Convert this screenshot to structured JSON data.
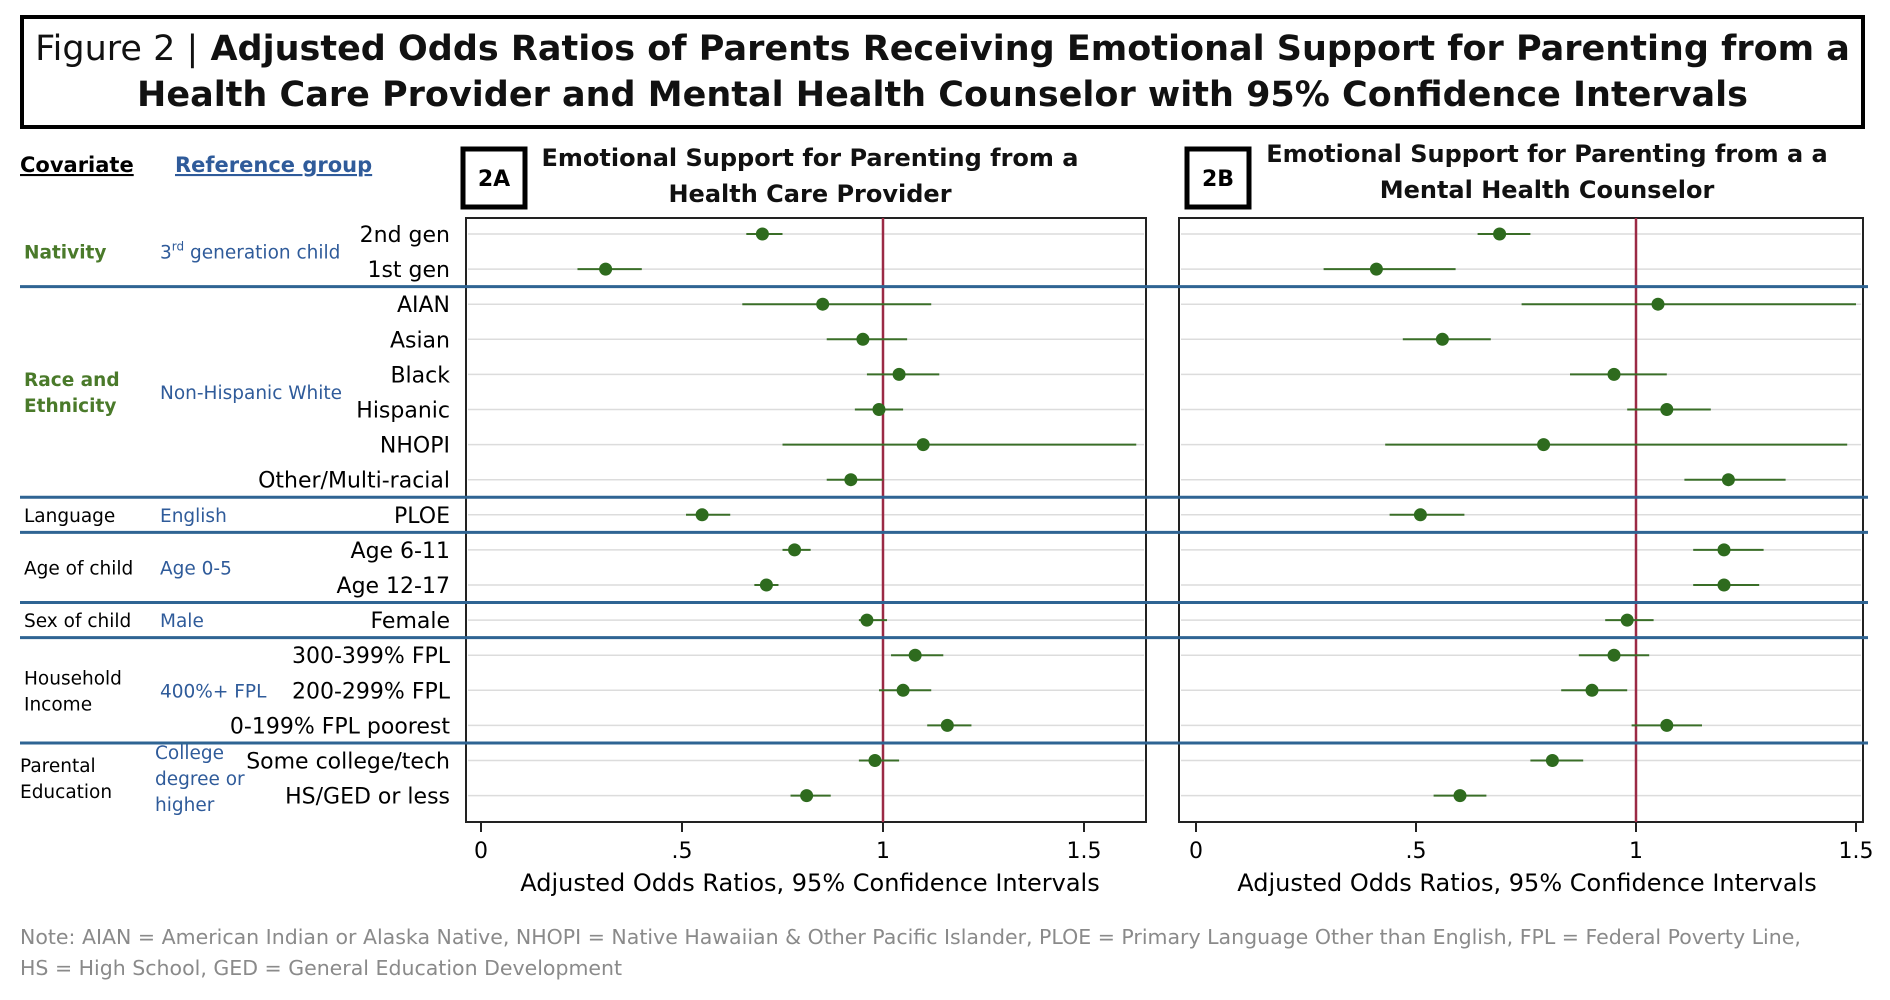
{
  "title": {
    "prefix": "Figure 2 |",
    "line1": "Adjusted Odds Ratios of Parents Receiving Emotional Support for Parenting from a",
    "line2": "Health Care Provider and Mental Health Counselor with 95% Confidence Intervals"
  },
  "headers": {
    "covariate": "Covariate",
    "reference": "Reference group"
  },
  "groups": [
    {
      "covariate": [
        "Nativity"
      ],
      "covariate_color": "#4a7a2a",
      "covariate_bold": true,
      "reference": [
        "3rd generation child"
      ],
      "reference_sup": "rd"
    },
    {
      "covariate": [
        "Race and",
        "Ethnicity"
      ],
      "covariate_color": "#4a7a2a",
      "covariate_bold": true,
      "reference": [
        "Non-Hispanic White"
      ]
    },
    {
      "covariate": [
        "Language"
      ],
      "covariate_color": "#000000",
      "covariate_bold": false,
      "reference": [
        "English"
      ]
    },
    {
      "covariate": [
        "Age of child"
      ],
      "covariate_color": "#000000",
      "covariate_bold": false,
      "reference": [
        "Age 0-5"
      ]
    },
    {
      "covariate": [
        "Sex of child"
      ],
      "covariate_color": "#000000",
      "covariate_bold": false,
      "reference": [
        "Male"
      ]
    },
    {
      "covariate": [
        "Household",
        "Income"
      ],
      "covariate_color": "#000000",
      "covariate_bold": false,
      "reference": [
        "400%+ FPL"
      ]
    },
    {
      "covariate": [
        "Parental",
        "Education"
      ],
      "covariate_color": "#000000",
      "covariate_bold": false,
      "reference": [
        "College",
        "degree or",
        "higher"
      ]
    }
  ],
  "chart_data": [
    {
      "type": "scatter",
      "panel_label": "2A",
      "title": "Emotional Support for Parenting from a Health Care Provider",
      "title_lines": [
        "Emotional Support for Parenting from a",
        "Health Care Provider"
      ],
      "xlabel": "Adjusted Odds Ratios, 95% Confidence Intervals",
      "xlim": [
        0,
        1.65
      ],
      "xticks": [
        0,
        0.5,
        1,
        1.5
      ],
      "xtick_labels": [
        "0",
        ".5",
        "1",
        "1.5"
      ],
      "reference_line": 1,
      "categories": [
        "2nd gen",
        "1st gen",
        "AIAN",
        "Asian",
        "Black",
        "Hispanic",
        "NHOPI",
        "Other/Multi-racial",
        "PLOE",
        "Age 6-11",
        "Age 12-17",
        "Female",
        "300-399% FPL",
        "200-299% FPL",
        "0-199% FPL poorest",
        "Some college/tech",
        "HS/GED or less"
      ],
      "series": [
        {
          "values": [
            0.7,
            0.31,
            0.85,
            0.95,
            1.04,
            0.99,
            1.1,
            0.92,
            0.55,
            0.78,
            0.71,
            0.96,
            1.08,
            1.05,
            1.16,
            0.98,
            0.81
          ],
          "ci_lower": [
            0.66,
            0.24,
            0.65,
            0.86,
            0.96,
            0.93,
            0.75,
            0.86,
            0.51,
            0.75,
            0.68,
            0.94,
            1.02,
            0.99,
            1.11,
            0.94,
            0.77
          ],
          "ci_upper": [
            0.75,
            0.4,
            1.12,
            1.06,
            1.14,
            1.05,
            1.63,
            1.0,
            0.62,
            0.82,
            0.74,
            1.01,
            1.15,
            1.12,
            1.22,
            1.04,
            0.87
          ]
        }
      ]
    },
    {
      "type": "scatter",
      "panel_label": "2B",
      "title": "Emotional Support for Parenting from a a Mental Health Counselor",
      "title_lines": [
        "Emotional Support for Parenting from a a",
        "Mental Health Counselor"
      ],
      "xlabel": "Adjusted Odds Ratios, 95% Confidence Intervals",
      "xlim": [
        0,
        1.54
      ],
      "xticks": [
        0,
        0.5,
        1,
        1.5
      ],
      "xtick_labels": [
        "0",
        ".5",
        "1",
        "1.5"
      ],
      "reference_line": 1,
      "categories": [
        "2nd gen",
        "1st gen",
        "AIAN",
        "Asian",
        "Black",
        "Hispanic",
        "NHOPI",
        "Other/Multi-racial",
        "PLOE",
        "Age 6-11",
        "Age 12-17",
        "Female",
        "300-399% FPL",
        "200-299% FPL",
        "0-199% FPL poorest",
        "Some college/tech",
        "HS/GED or less"
      ],
      "series": [
        {
          "values": [
            0.69,
            0.41,
            1.05,
            0.56,
            0.95,
            1.07,
            0.79,
            1.21,
            0.51,
            1.2,
            1.2,
            0.98,
            0.95,
            0.9,
            1.07,
            0.81,
            0.6
          ],
          "ci_lower": [
            0.64,
            0.29,
            0.74,
            0.47,
            0.85,
            0.98,
            0.43,
            1.11,
            0.44,
            1.13,
            1.13,
            0.93,
            0.87,
            0.83,
            0.99,
            0.76,
            0.54
          ],
          "ci_upper": [
            0.76,
            0.59,
            1.5,
            0.67,
            1.07,
            1.17,
            1.48,
            1.34,
            0.61,
            1.29,
            1.28,
            1.04,
            1.03,
            0.98,
            1.15,
            0.88,
            0.66
          ]
        }
      ]
    }
  ],
  "note_lines": [
    "Note: AIAN = American Indian or Alaska Native, NHOPI = Native Hawaiian & Other Pacific Islander, PLOE = Primary Language Other than English, FPL = Federal Poverty Line,",
    "HS = High School, GED = General Education Development"
  ],
  "colors": {
    "point": "#2e6b1e",
    "ci": "#3a6e28",
    "refline": "#9b2a45",
    "separator": "#2f6493",
    "grid": "#dcdcdc",
    "reference_text": "#2f5b9a"
  }
}
